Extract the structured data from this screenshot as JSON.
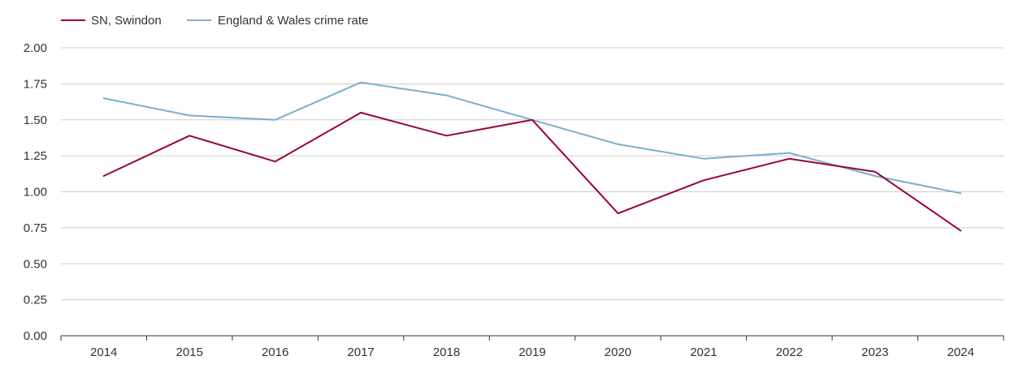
{
  "chart_data": {
    "type": "line",
    "title": "",
    "xlabel": "",
    "ylabel": "",
    "categories": [
      "2014",
      "2015",
      "2016",
      "2017",
      "2018",
      "2019",
      "2020",
      "2021",
      "2022",
      "2023",
      "2024"
    ],
    "ylim": [
      0,
      2
    ],
    "yticks": [
      "0.00",
      "0.25",
      "0.50",
      "0.75",
      "1.00",
      "1.25",
      "1.50",
      "1.75",
      "2.00"
    ],
    "grid": true,
    "legend_position": "top-left",
    "series": [
      {
        "name": "SN, Swindon",
        "color": "#99003a",
        "values": [
          1.11,
          1.39,
          1.21,
          1.55,
          1.39,
          1.5,
          0.85,
          1.08,
          1.23,
          1.14,
          0.73
        ]
      },
      {
        "name": "England & Wales crime rate",
        "color": "#7aadcf",
        "values": [
          1.65,
          1.53,
          1.5,
          1.76,
          1.67,
          1.5,
          1.33,
          1.23,
          1.27,
          1.11,
          0.99
        ]
      }
    ]
  }
}
